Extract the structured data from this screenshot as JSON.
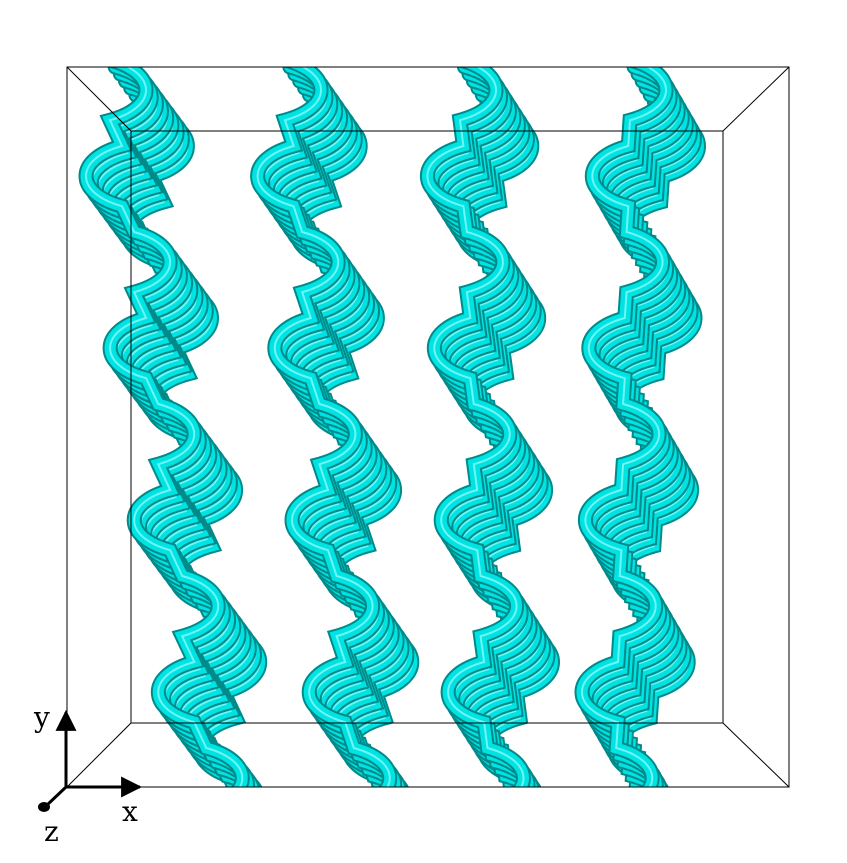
{
  "scene": {
    "surface_color": "#00e3e3",
    "shade_color": "#008a8a",
    "highlight_color": "#9ffcfc",
    "edge_color": "#000000",
    "background": "#ffffff"
  },
  "axes": {
    "x_label": "x",
    "y_label": "y",
    "z_label": "z"
  }
}
